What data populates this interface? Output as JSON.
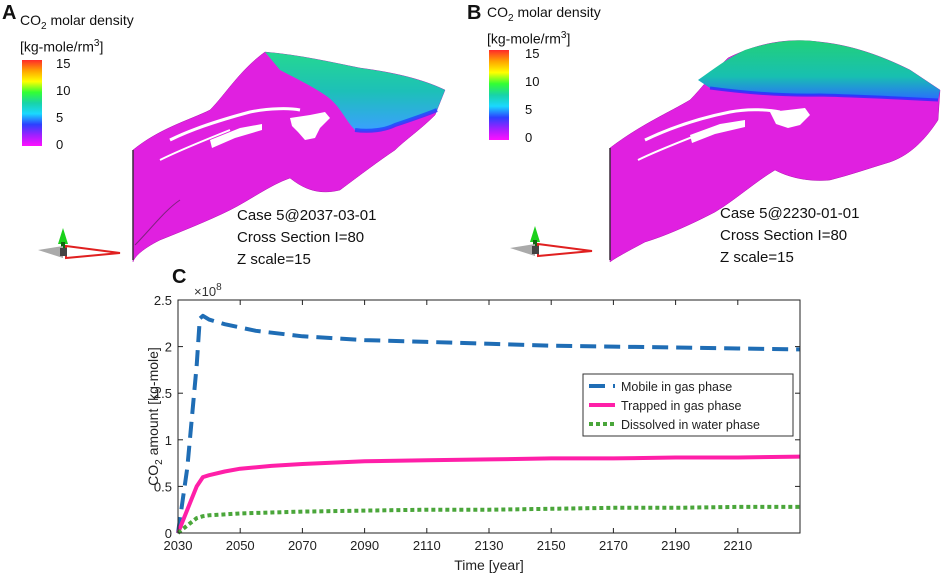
{
  "panels": {
    "A": {
      "letter": "A",
      "colorbar": {
        "title_main": "CO",
        "title_sub": "2",
        "title_rest": " molar density",
        "unit_main": "[kg-mole/rm",
        "unit_sup": "3",
        "unit_end": "]",
        "ticks": [
          "15",
          "10",
          "5",
          "0"
        ]
      },
      "caption": [
        "Case 5@2037-03-01",
        "Cross Section I=80",
        "Z scale=15"
      ]
    },
    "B": {
      "letter": "B",
      "colorbar": {
        "title_main": "CO",
        "title_sub": "2",
        "title_rest": " molar density",
        "unit_main": "[kg-mole/rm",
        "unit_sup": "3",
        "unit_end": "]",
        "ticks": [
          "15",
          "10",
          "5",
          "0"
        ]
      },
      "caption": [
        "Case 5@2230-01-01",
        "Cross Section I=80",
        "Z scale=15"
      ]
    },
    "C": {
      "letter": "C"
    }
  },
  "colors": {
    "mobile": "#1f6db5",
    "trapped": "#ff1fa8",
    "dissolved": "#4aa63a",
    "reservoir": "#e020e0"
  },
  "chart_data": {
    "type": "line",
    "ylabel_main": "CO",
    "ylabel_sub": "2",
    "ylabel_rest": " amount [kg-mole]",
    "xlabel": "Time [year]",
    "y_exponent_base": "×10",
    "y_exponent": "8",
    "xlim": [
      2030,
      2230
    ],
    "ylim": [
      0,
      2.5
    ],
    "xticks": [
      2030,
      2050,
      2070,
      2090,
      2110,
      2130,
      2150,
      2170,
      2190,
      2210
    ],
    "yticks": [
      0,
      0.5,
      1,
      1.5,
      2,
      2.5
    ],
    "ytick_labels": [
      "0",
      "0.5",
      "1",
      "1.5",
      "2",
      "2.5"
    ],
    "legend_position": "center-right",
    "series": [
      {
        "name": "Mobile in gas phase",
        "style": "dashed",
        "color_key": "mobile",
        "x": [
          2030,
          2033,
          2036,
          2037,
          2038,
          2040,
          2045,
          2055,
          2070,
          2090,
          2110,
          2130,
          2150,
          2170,
          2190,
          2210,
          2230
        ],
        "y": [
          0,
          0.7,
          1.8,
          2.3,
          2.33,
          2.29,
          2.24,
          2.17,
          2.11,
          2.07,
          2.05,
          2.03,
          2.01,
          2.0,
          1.99,
          1.98,
          1.97
        ]
      },
      {
        "name": "Trapped in gas phase",
        "style": "solid",
        "color_key": "trapped",
        "x": [
          2030,
          2033,
          2036,
          2038,
          2040,
          2045,
          2050,
          2060,
          2070,
          2090,
          2110,
          2130,
          2150,
          2170,
          2190,
          2210,
          2230
        ],
        "y": [
          0,
          0.25,
          0.5,
          0.6,
          0.62,
          0.66,
          0.69,
          0.72,
          0.74,
          0.77,
          0.78,
          0.79,
          0.8,
          0.8,
          0.81,
          0.81,
          0.82
        ]
      },
      {
        "name": "Dissolved in water phase",
        "style": "dotted",
        "color_key": "dissolved",
        "x": [
          2030,
          2033,
          2036,
          2038,
          2040,
          2045,
          2050,
          2060,
          2070,
          2090,
          2110,
          2130,
          2150,
          2170,
          2190,
          2210,
          2230
        ],
        "y": [
          0,
          0.08,
          0.16,
          0.18,
          0.19,
          0.2,
          0.21,
          0.22,
          0.23,
          0.24,
          0.25,
          0.25,
          0.26,
          0.27,
          0.27,
          0.28,
          0.28
        ]
      }
    ]
  }
}
